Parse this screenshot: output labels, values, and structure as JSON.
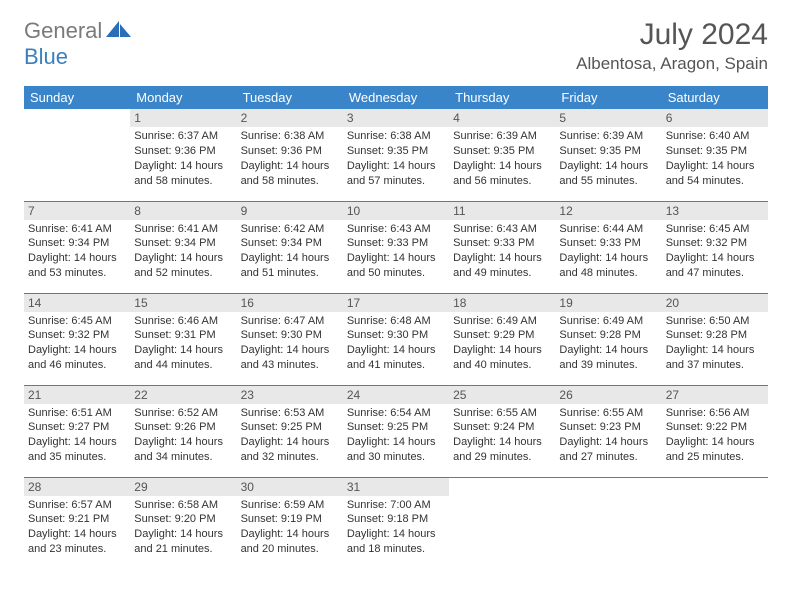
{
  "brand": {
    "part1": "General",
    "part2": "Blue"
  },
  "title": "July 2024",
  "location": "Albentosa, Aragon, Spain",
  "colors": {
    "header_bg": "#3a85c9",
    "header_text": "#ffffff",
    "daynum_bg": "#e8e8e8",
    "row_border": "#3a85c9",
    "brand_gray": "#7a7a7a",
    "brand_blue": "#3a7fbf"
  },
  "weekdays": [
    "Sunday",
    "Monday",
    "Tuesday",
    "Wednesday",
    "Thursday",
    "Friday",
    "Saturday"
  ],
  "weeks": [
    [
      null,
      {
        "n": "1",
        "sr": "6:37 AM",
        "ss": "9:36 PM",
        "dl": "14 hours and 58 minutes."
      },
      {
        "n": "2",
        "sr": "6:38 AM",
        "ss": "9:36 PM",
        "dl": "14 hours and 58 minutes."
      },
      {
        "n": "3",
        "sr": "6:38 AM",
        "ss": "9:35 PM",
        "dl": "14 hours and 57 minutes."
      },
      {
        "n": "4",
        "sr": "6:39 AM",
        "ss": "9:35 PM",
        "dl": "14 hours and 56 minutes."
      },
      {
        "n": "5",
        "sr": "6:39 AM",
        "ss": "9:35 PM",
        "dl": "14 hours and 55 minutes."
      },
      {
        "n": "6",
        "sr": "6:40 AM",
        "ss": "9:35 PM",
        "dl": "14 hours and 54 minutes."
      }
    ],
    [
      {
        "n": "7",
        "sr": "6:41 AM",
        "ss": "9:34 PM",
        "dl": "14 hours and 53 minutes."
      },
      {
        "n": "8",
        "sr": "6:41 AM",
        "ss": "9:34 PM",
        "dl": "14 hours and 52 minutes."
      },
      {
        "n": "9",
        "sr": "6:42 AM",
        "ss": "9:34 PM",
        "dl": "14 hours and 51 minutes."
      },
      {
        "n": "10",
        "sr": "6:43 AM",
        "ss": "9:33 PM",
        "dl": "14 hours and 50 minutes."
      },
      {
        "n": "11",
        "sr": "6:43 AM",
        "ss": "9:33 PM",
        "dl": "14 hours and 49 minutes."
      },
      {
        "n": "12",
        "sr": "6:44 AM",
        "ss": "9:33 PM",
        "dl": "14 hours and 48 minutes."
      },
      {
        "n": "13",
        "sr": "6:45 AM",
        "ss": "9:32 PM",
        "dl": "14 hours and 47 minutes."
      }
    ],
    [
      {
        "n": "14",
        "sr": "6:45 AM",
        "ss": "9:32 PM",
        "dl": "14 hours and 46 minutes."
      },
      {
        "n": "15",
        "sr": "6:46 AM",
        "ss": "9:31 PM",
        "dl": "14 hours and 44 minutes."
      },
      {
        "n": "16",
        "sr": "6:47 AM",
        "ss": "9:30 PM",
        "dl": "14 hours and 43 minutes."
      },
      {
        "n": "17",
        "sr": "6:48 AM",
        "ss": "9:30 PM",
        "dl": "14 hours and 41 minutes."
      },
      {
        "n": "18",
        "sr": "6:49 AM",
        "ss": "9:29 PM",
        "dl": "14 hours and 40 minutes."
      },
      {
        "n": "19",
        "sr": "6:49 AM",
        "ss": "9:28 PM",
        "dl": "14 hours and 39 minutes."
      },
      {
        "n": "20",
        "sr": "6:50 AM",
        "ss": "9:28 PM",
        "dl": "14 hours and 37 minutes."
      }
    ],
    [
      {
        "n": "21",
        "sr": "6:51 AM",
        "ss": "9:27 PM",
        "dl": "14 hours and 35 minutes."
      },
      {
        "n": "22",
        "sr": "6:52 AM",
        "ss": "9:26 PM",
        "dl": "14 hours and 34 minutes."
      },
      {
        "n": "23",
        "sr": "6:53 AM",
        "ss": "9:25 PM",
        "dl": "14 hours and 32 minutes."
      },
      {
        "n": "24",
        "sr": "6:54 AM",
        "ss": "9:25 PM",
        "dl": "14 hours and 30 minutes."
      },
      {
        "n": "25",
        "sr": "6:55 AM",
        "ss": "9:24 PM",
        "dl": "14 hours and 29 minutes."
      },
      {
        "n": "26",
        "sr": "6:55 AM",
        "ss": "9:23 PM",
        "dl": "14 hours and 27 minutes."
      },
      {
        "n": "27",
        "sr": "6:56 AM",
        "ss": "9:22 PM",
        "dl": "14 hours and 25 minutes."
      }
    ],
    [
      {
        "n": "28",
        "sr": "6:57 AM",
        "ss": "9:21 PM",
        "dl": "14 hours and 23 minutes."
      },
      {
        "n": "29",
        "sr": "6:58 AM",
        "ss": "9:20 PM",
        "dl": "14 hours and 21 minutes."
      },
      {
        "n": "30",
        "sr": "6:59 AM",
        "ss": "9:19 PM",
        "dl": "14 hours and 20 minutes."
      },
      {
        "n": "31",
        "sr": "7:00 AM",
        "ss": "9:18 PM",
        "dl": "14 hours and 18 minutes."
      },
      null,
      null,
      null
    ]
  ],
  "labels": {
    "sunrise": "Sunrise:",
    "sunset": "Sunset:",
    "daylight": "Daylight:"
  }
}
